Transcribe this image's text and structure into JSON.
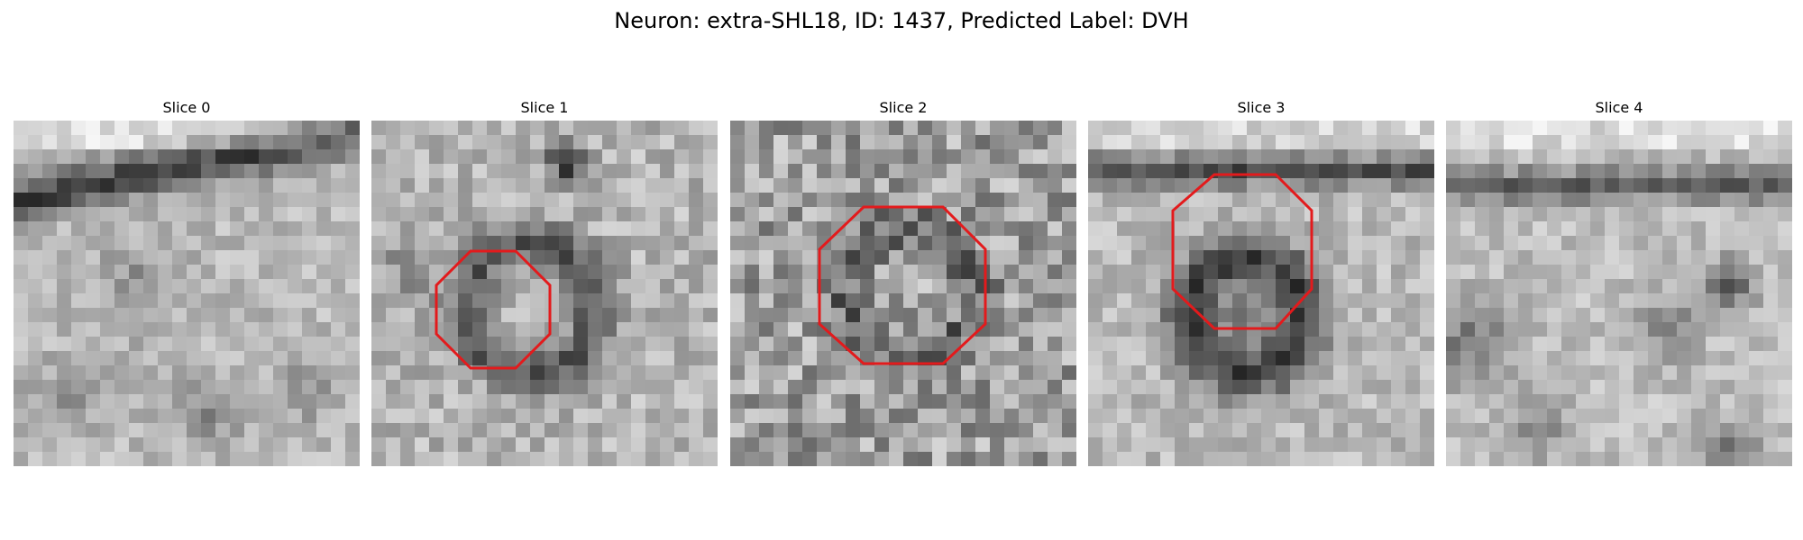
{
  "figure": {
    "title": "Neuron: extra-SHL18, ID: 1437, Predicted Label: DVH",
    "outline_color": "#e31a1c"
  },
  "panels": [
    {
      "title": "Slice 0",
      "outline": false
    },
    {
      "title": "Slice 1",
      "outline": true
    },
    {
      "title": "Slice 2",
      "outline": true
    },
    {
      "title": "Slice 3",
      "outline": true
    },
    {
      "title": "Slice 4",
      "outline": false
    }
  ]
}
